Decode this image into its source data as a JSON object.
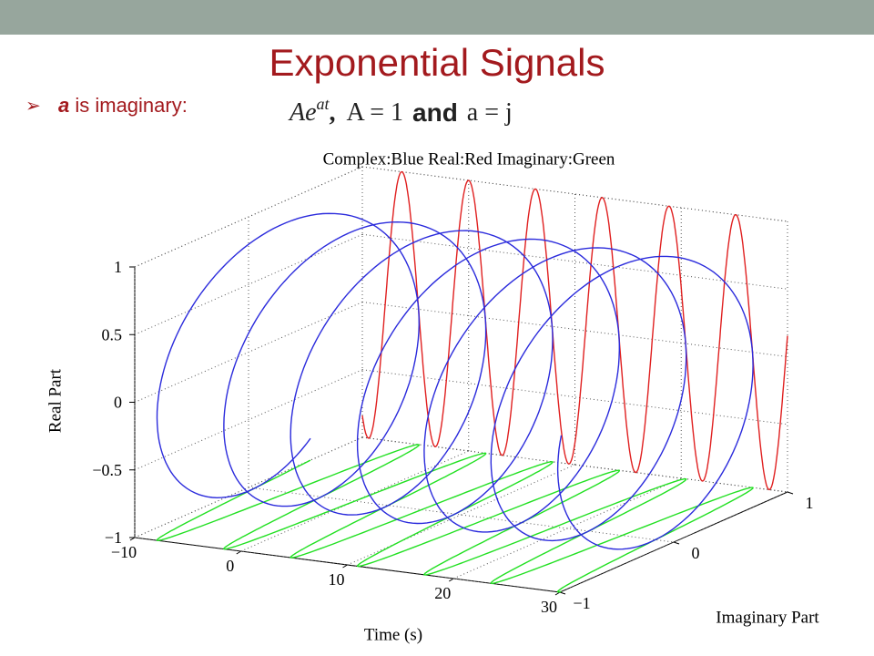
{
  "slide": {
    "title": "Exponential Signals",
    "bullet_var": "a",
    "bullet_rest": " is imaginary:",
    "formula_base": "Ae",
    "formula_exp": "at",
    "formula_sep": ",",
    "formula_a": "A = 1",
    "formula_and": "and",
    "formula_b": "a = j"
  },
  "chart_data": {
    "type": "helix3d",
    "title": "Complex:Blue  Real:Red  Imaginary:Green",
    "xlabel": "Time (s)",
    "ylabel": "Imaginary Part",
    "zlabel": "Real Part",
    "xlim": [
      -10,
      30
    ],
    "ylim": [
      -1,
      1
    ],
    "zlim": [
      -1,
      1
    ],
    "xticks": [
      {
        "value": -10,
        "label": "−10"
      },
      0,
      10,
      20,
      30
    ],
    "yticks": [
      {
        "value": -1,
        "label": "−1"
      },
      0,
      1
    ],
    "zticks": [
      {
        "value": -1,
        "label": "−1"
      },
      {
        "value": -0.5,
        "label": "−0.5"
      },
      0,
      0.5,
      1
    ],
    "colors": {
      "complex": "#2b2bdc",
      "real": "#e02020",
      "imaginary": "#22e022"
    },
    "grid": true
  }
}
